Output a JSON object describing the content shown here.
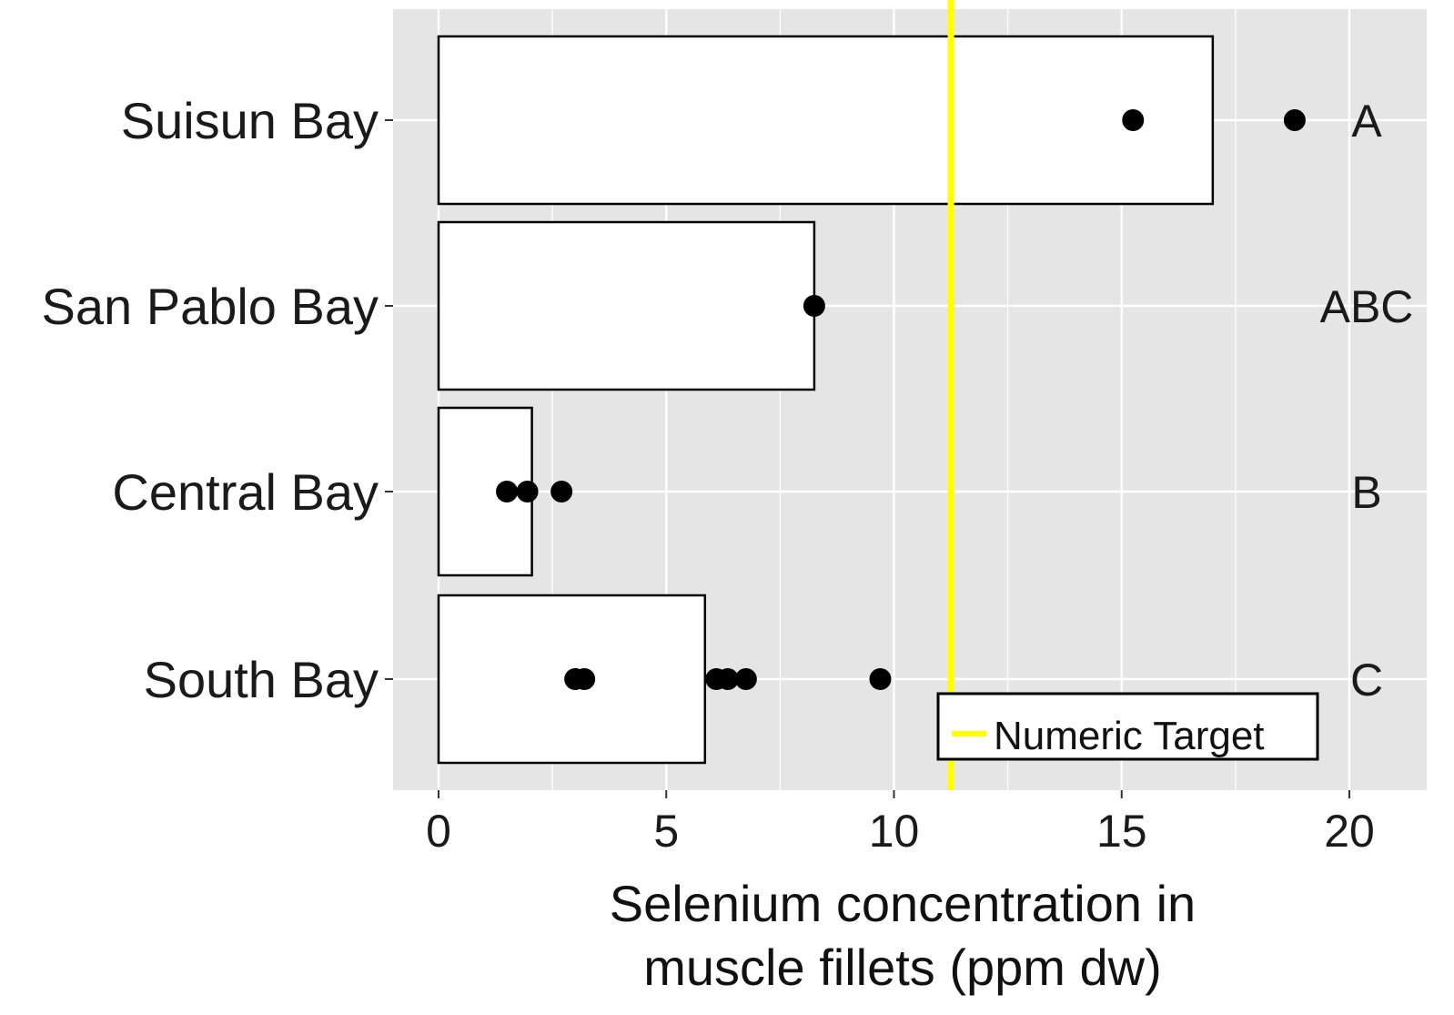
{
  "chart_data": {
    "type": "bar",
    "orientation": "horizontal",
    "categories": [
      "Suisun Bay",
      "San Pablo Bay",
      "Central Bay",
      "South Bay"
    ],
    "values": [
      17.0,
      8.25,
      2.05,
      5.85
    ],
    "points": [
      [
        15.25,
        18.8
      ],
      [
        8.25
      ],
      [
        1.5,
        1.95,
        2.7
      ],
      [
        3.0,
        3.2,
        6.1,
        6.35,
        6.75,
        9.7
      ]
    ],
    "group_letters": [
      "A",
      "ABC",
      "B",
      "C"
    ],
    "reference_line": {
      "value": 11.25,
      "label": "Numeric Target",
      "color": "#ffff00"
    },
    "xlabel": [
      "Selenium concentration in",
      "muscle fillets (ppm dw)"
    ],
    "xlim": [
      -1,
      21.4
    ],
    "xticks": [
      0,
      5,
      10,
      15,
      20
    ],
    "grid": true,
    "legend_position": "bottom-right",
    "colors": {
      "panel": "#e5e5e5",
      "grid": "#ffffff",
      "bar_fill": "#ffffff",
      "bar_stroke": "#000000",
      "points": "#000000"
    }
  }
}
